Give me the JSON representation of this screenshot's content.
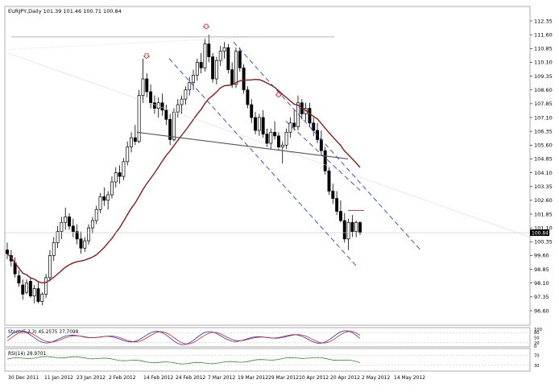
{
  "chart_data": [
    {
      "type": "candlestick",
      "header": "EURJPY,Daily  101.39 101.46 100.71 100.84",
      "price_tag": "100.84",
      "y_ticks": [
        "112.35",
        "111.60",
        "110.85",
        "110.10",
        "109.35",
        "108.60",
        "107.85",
        "107.10",
        "106.35",
        "105.60",
        "104.85",
        "104.10",
        "103.35",
        "102.60",
        "101.85",
        "101.10",
        "100.35",
        "99.60",
        "98.85",
        "98.10",
        "97.35",
        "96.60"
      ],
      "x_ticks": [
        "30 Dec 2011",
        "11 Jan 2012",
        "23 Jan 2012",
        "2 Feb 2012",
        "14 Feb 2012",
        "24 Feb 2012",
        "7 Mar 2012",
        "19 Mar 2012",
        "29 Mar 2012",
        "10 Apr 2012",
        "20 Apr 2012",
        "2 May 2012",
        "14 May 2012"
      ],
      "ohlc_approx": [
        [
          99.9,
          100.3,
          99.4,
          99.7
        ],
        [
          99.6,
          99.9,
          99.0,
          99.3
        ],
        [
          99.2,
          99.5,
          98.4,
          98.6
        ],
        [
          98.5,
          98.8,
          97.9,
          98.1
        ],
        [
          98.0,
          98.3,
          97.2,
          97.5
        ],
        [
          97.6,
          98.3,
          97.5,
          98.1
        ],
        [
          98.2,
          98.4,
          97.3,
          97.4
        ],
        [
          97.4,
          98.0,
          97.0,
          97.8
        ],
        [
          97.8,
          98.2,
          97.0,
          97.1
        ],
        [
          97.1,
          97.6,
          96.9,
          97.5
        ],
        [
          97.5,
          98.6,
          97.3,
          98.4
        ],
        [
          98.4,
          99.9,
          98.2,
          99.6
        ],
        [
          99.6,
          100.6,
          99.3,
          100.3
        ],
        [
          100.3,
          101.2,
          100.0,
          100.9
        ],
        [
          100.9,
          101.7,
          100.5,
          101.4
        ],
        [
          101.4,
          102.2,
          101.0,
          101.7
        ],
        [
          101.7,
          101.9,
          101.0,
          101.2
        ],
        [
          101.2,
          101.6,
          100.6,
          100.9
        ],
        [
          100.9,
          101.3,
          100.2,
          100.5
        ],
        [
          100.5,
          100.9,
          99.7,
          100.0
        ],
        [
          100.0,
          100.6,
          99.8,
          100.4
        ],
        [
          100.4,
          101.3,
          100.2,
          101.1
        ],
        [
          101.1,
          101.7,
          100.8,
          101.5
        ],
        [
          101.5,
          102.3,
          101.3,
          102.1
        ],
        [
          102.1,
          103.0,
          101.9,
          102.8
        ],
        [
          102.8,
          103.3,
          102.3,
          102.6
        ],
        [
          102.6,
          103.1,
          102.1,
          102.9
        ],
        [
          102.9,
          103.9,
          102.7,
          103.6
        ],
        [
          103.6,
          104.4,
          103.3,
          104.1
        ],
        [
          104.1,
          104.5,
          103.5,
          103.9
        ],
        [
          103.9,
          104.9,
          103.7,
          104.7
        ],
        [
          104.7,
          105.8,
          104.5,
          105.5
        ],
        [
          105.5,
          106.3,
          105.2,
          106.0
        ],
        [
          106.0,
          106.7,
          105.6,
          105.8
        ],
        [
          105.8,
          108.6,
          105.7,
          108.3
        ],
        [
          108.3,
          110.3,
          107.9,
          109.2
        ],
        [
          109.2,
          109.5,
          108.2,
          108.5
        ],
        [
          108.5,
          108.9,
          107.6,
          107.9
        ],
        [
          107.9,
          108.3,
          107.3,
          107.6
        ],
        [
          107.6,
          108.2,
          107.1,
          107.9
        ],
        [
          107.9,
          108.4,
          107.2,
          107.5
        ],
        [
          107.5,
          107.8,
          106.7,
          107.0
        ],
        [
          107.0,
          107.3,
          105.6,
          105.9
        ],
        [
          105.9,
          107.6,
          105.8,
          107.4
        ],
        [
          107.4,
          108.1,
          107.1,
          107.8
        ],
        [
          107.8,
          108.3,
          107.3,
          108.1
        ],
        [
          108.1,
          108.8,
          107.8,
          108.6
        ],
        [
          108.6,
          109.3,
          108.3,
          109.0
        ],
        [
          109.0,
          109.7,
          108.6,
          109.4
        ],
        [
          109.4,
          110.3,
          109.1,
          110.1
        ],
        [
          110.1,
          110.6,
          109.5,
          109.8
        ],
        [
          109.8,
          111.4,
          109.6,
          111.1
        ],
        [
          111.1,
          111.6,
          110.1,
          110.4
        ],
        [
          110.4,
          110.6,
          109.0,
          109.2
        ],
        [
          109.2,
          110.4,
          108.9,
          110.2
        ],
        [
          110.2,
          111.0,
          109.9,
          110.7
        ],
        [
          110.7,
          111.2,
          110.3,
          110.9
        ],
        [
          110.9,
          111.1,
          109.5,
          109.7
        ],
        [
          109.7,
          110.1,
          108.7,
          108.9
        ],
        [
          108.9,
          110.9,
          108.7,
          110.7
        ],
        [
          110.7,
          110.9,
          109.6,
          109.8
        ],
        [
          109.8,
          110.0,
          108.4,
          108.6
        ],
        [
          108.6,
          108.8,
          107.6,
          107.8
        ],
        [
          107.8,
          108.1,
          106.8,
          107.1
        ],
        [
          107.1,
          107.4,
          106.2,
          106.4
        ],
        [
          106.4,
          107.3,
          106.1,
          107.1
        ],
        [
          107.1,
          107.5,
          106.0,
          106.2
        ],
        [
          106.2,
          106.5,
          105.5,
          105.7
        ],
        [
          105.7,
          106.5,
          105.4,
          106.3
        ],
        [
          106.3,
          106.9,
          105.9,
          106.1
        ],
        [
          106.1,
          106.3,
          105.3,
          105.5
        ],
        [
          105.5,
          105.8,
          104.6,
          105.6
        ],
        [
          105.6,
          106.5,
          105.4,
          106.3
        ],
        [
          106.3,
          107.1,
          106.0,
          106.8
        ],
        [
          106.8,
          107.5,
          106.4,
          106.6
        ],
        [
          106.6,
          108.3,
          106.4,
          107.9
        ],
        [
          107.9,
          108.1,
          107.0,
          107.3
        ],
        [
          107.3,
          107.9,
          106.9,
          107.6
        ],
        [
          107.6,
          107.9,
          106.6,
          106.8
        ],
        [
          106.8,
          107.1,
          106.1,
          106.4
        ],
        [
          106.4,
          106.8,
          105.7,
          105.9
        ],
        [
          105.9,
          106.4,
          105.1,
          105.3
        ],
        [
          105.3,
          105.5,
          104.0,
          104.2
        ],
        [
          104.2,
          104.4,
          102.9,
          103.1
        ],
        [
          103.1,
          103.5,
          102.4,
          102.7
        ],
        [
          102.7,
          103.1,
          101.8,
          102.0
        ],
        [
          102.0,
          102.6,
          101.4,
          101.5
        ],
        [
          101.5,
          101.9,
          100.3,
          100.5
        ],
        [
          100.5,
          101.6,
          99.9,
          101.4
        ],
        [
          101.4,
          101.8,
          100.6,
          100.9
        ],
        [
          100.9,
          101.5,
          100.6,
          101.4
        ],
        [
          101.39,
          101.46,
          100.71,
          100.84
        ]
      ],
      "moving_average_color": "#8b1a1a",
      "channel_color": "#2a3bd6",
      "annotations": [
        "horizontal resistance line near 111.50",
        "falling channel (dashed)",
        "neckline support line",
        "fractal arrows at swing highs",
        "horizontal price line at 100.84"
      ],
      "sub_panels": [
        {
          "name": "stochastic",
          "header": "Stoch(5,3,3) 45.2575 37.7098",
          "y_ticks": [
            "100",
            "80",
            "50",
            "20",
            "0"
          ],
          "colors": {
            "main": "#1f2fd2",
            "signal": "#d62020"
          }
        },
        {
          "name": "rsi",
          "header": "RSI(14) 28.9701",
          "y_ticks": [
            "70",
            "30"
          ],
          "colors": {
            "line": "#2e8b2e"
          }
        }
      ]
    }
  ]
}
